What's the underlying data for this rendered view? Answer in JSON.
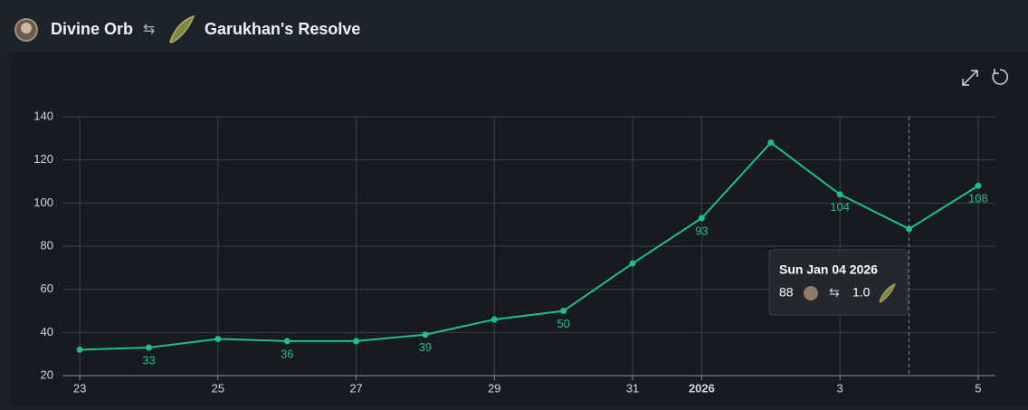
{
  "header": {
    "from": "Divine Orb",
    "arrow": "⇆",
    "to": "Garukhan's Resolve"
  },
  "chart_data": {
    "type": "line",
    "x": [
      "2025-12-23",
      "2025-12-24",
      "2025-12-25",
      "2025-12-26",
      "2025-12-27",
      "2025-12-28",
      "2025-12-29",
      "2025-12-30",
      "2025-12-31",
      "2026-01-01",
      "2026-01-02",
      "2026-01-03",
      "2026-01-04",
      "2026-01-05"
    ],
    "series": [
      {
        "name": "Divine Orb",
        "color": "#1fbf86",
        "values": [
          32,
          33,
          37,
          36,
          36,
          39,
          46,
          50,
          72,
          93,
          128,
          104,
          88,
          108
        ]
      }
    ],
    "xlim": [
      "2025-12-22T18:00",
      "2026-01-05T06:00"
    ],
    "xticks": [
      {
        "value": "2025-12-23",
        "label": "23"
      },
      {
        "value": "2025-12-25",
        "label": "25"
      },
      {
        "value": "2025-12-27",
        "label": "27"
      },
      {
        "value": "2025-12-29",
        "label": "29"
      },
      {
        "value": "2025-12-31",
        "label": "31"
      },
      {
        "value": "2026-01-01",
        "label": "2026"
      },
      {
        "value": "2026-01-03",
        "label": "3"
      },
      {
        "value": "2026-01-05",
        "label": "5"
      }
    ],
    "ylim": [
      20,
      140
    ],
    "yticks": [
      20,
      40,
      60,
      80,
      100,
      120,
      140
    ],
    "grid": true,
    "tooltip": {
      "title": "Sun Jan 04 2026",
      "ratio": "1.0"
    }
  }
}
